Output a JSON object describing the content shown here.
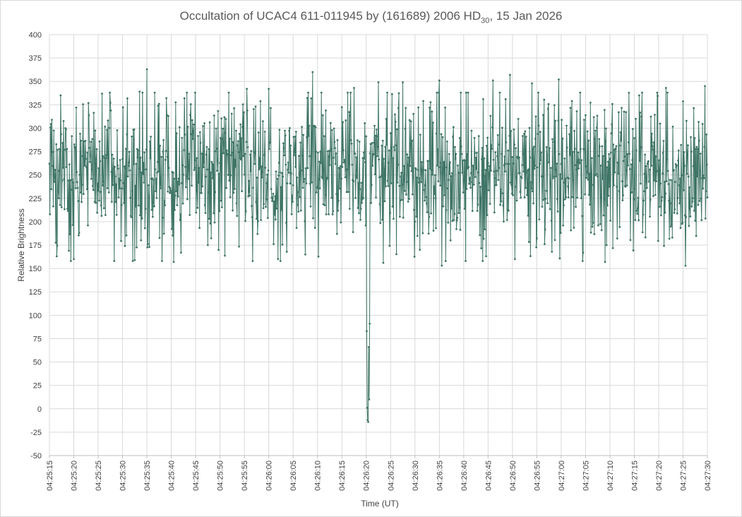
{
  "chart_data": {
    "type": "line",
    "title": {
      "prefix": "Occultation of UCAC4 611-011945 by (161689) 2006 HD",
      "subscript": "30",
      "suffix": ", 15 Jan 2026"
    },
    "xlabel": "Time (UT)",
    "ylabel": "Relative Brightness",
    "ylim": [
      -50,
      400
    ],
    "yticks": [
      -50,
      -25,
      0,
      25,
      50,
      75,
      100,
      125,
      150,
      175,
      200,
      225,
      250,
      275,
      300,
      325,
      350,
      375,
      400
    ],
    "xlim": [
      "04:25:15",
      "04:27:30"
    ],
    "xticks": [
      "04:25:15",
      "04:25:20",
      "04:25:25",
      "04:25:30",
      "04:25:35",
      "04:25:40",
      "04:25:45",
      "04:25:50",
      "04:25:55",
      "04:26:00",
      "04:26:05",
      "04:26:10",
      "04:26:15",
      "04:26:20",
      "04:26:25",
      "04:26:30",
      "04:26:35",
      "04:26:40",
      "04:26:45",
      "04:26:50",
      "04:26:55",
      "04:27:00",
      "04:27:05",
      "04:27:10",
      "04:27:15",
      "04:27:20",
      "04:27:25",
      "04:27:30"
    ],
    "grid": true,
    "legend": "none",
    "series": [
      {
        "line_color": "#3f7566",
        "sampling_interval_s": 0.1,
        "baseline_mean": 255,
        "baseline_noise_sd": 38,
        "points": [
          {
            "x": "04:25:15.0",
            "y": 262
          },
          {
            "x": "04:25:16.5",
            "y": 163
          },
          {
            "x": "04:25:19.0",
            "y": 169
          },
          {
            "x": "04:25:20.0",
            "y": 160
          },
          {
            "x": "04:25:20.5",
            "y": 322
          },
          {
            "x": "04:25:27.5",
            "y": 327
          },
          {
            "x": "04:25:30.5",
            "y": 174
          },
          {
            "x": "04:25:33.5",
            "y": 339
          },
          {
            "x": "04:25:35.0",
            "y": 363
          },
          {
            "x": "04:25:35.5",
            "y": 173
          },
          {
            "x": "04:25:37.5",
            "y": 326
          },
          {
            "x": "04:25:39.0",
            "y": 332
          },
          {
            "x": "04:25:40.5",
            "y": 157
          },
          {
            "x": "04:25:42.0",
            "y": 167
          },
          {
            "x": "04:25:47.5",
            "y": 175
          },
          {
            "x": "04:25:55.5",
            "y": 342
          },
          {
            "x": "04:26:00.0",
            "y": 342
          },
          {
            "x": "04:26:01.0",
            "y": 176
          },
          {
            "x": "04:26:07.5",
            "y": 165
          },
          {
            "x": "04:26:09.0",
            "y": 360
          },
          {
            "x": "04:26:14.0",
            "y": 187
          },
          {
            "x": "04:26:17.5",
            "y": 343
          },
          {
            "x": "04:26:19.9",
            "y": 196
          },
          {
            "x": "04:26:20.1",
            "y": 83
          },
          {
            "x": "04:26:20.2",
            "y": 1
          },
          {
            "x": "04:26:20.3",
            "y": -12
          },
          {
            "x": "04:26:20.4",
            "y": -14
          },
          {
            "x": "04:26:20.5",
            "y": 66
          },
          {
            "x": "04:26:20.6",
            "y": 10
          },
          {
            "x": "04:26:20.7",
            "y": 91
          },
          {
            "x": "04:26:20.9",
            "y": 283
          },
          {
            "x": "04:26:22.5",
            "y": 349
          },
          {
            "x": "04:26:23.5",
            "y": 156
          },
          {
            "x": "04:26:27.5",
            "y": 349
          },
          {
            "x": "04:26:31.0",
            "y": 170
          },
          {
            "x": "04:26:35.0",
            "y": 351
          },
          {
            "x": "04:26:35.5",
            "y": 153
          },
          {
            "x": "04:26:44.0",
            "y": 331
          },
          {
            "x": "04:26:46.0",
            "y": 351
          },
          {
            "x": "04:26:49.5",
            "y": 357
          },
          {
            "x": "04:26:50.5",
            "y": 160
          },
          {
            "x": "04:26:54.0",
            "y": 348
          },
          {
            "x": "04:26:59.5",
            "y": 352
          },
          {
            "x": "04:27:04.5",
            "y": 167
          },
          {
            "x": "04:27:09.0",
            "y": 157
          },
          {
            "x": "04:27:16.0",
            "y": 335
          },
          {
            "x": "04:27:21.5",
            "y": 343
          },
          {
            "x": "04:27:25.5",
            "y": 153
          },
          {
            "x": "04:27:29.5",
            "y": 345
          },
          {
            "x": "04:27:30.0",
            "y": 226
          }
        ]
      }
    ]
  }
}
